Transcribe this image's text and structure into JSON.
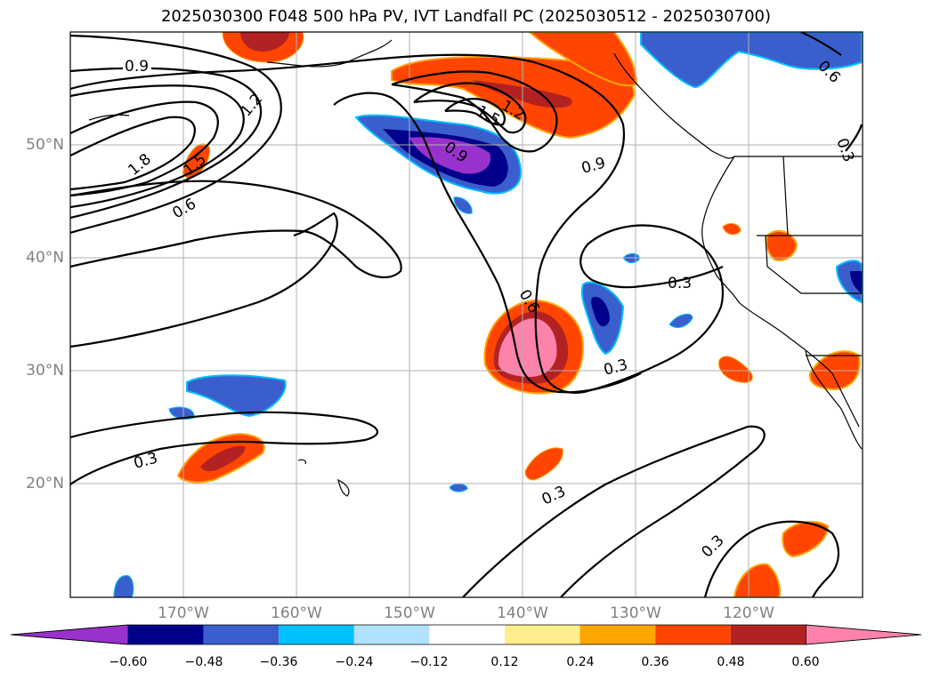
{
  "title": "2025030300 F048 500 hPa PV, IVT Landfall PC (2025030512 - 2025030700)",
  "lat_labels": [
    "50°N",
    "40°N",
    "30°N",
    "20°N"
  ],
  "lon_labels": [
    "170°W",
    "160°W",
    "150°W",
    "140°W",
    "130°W",
    "120°W"
  ],
  "contour_labels": [
    "0.9",
    "1.2",
    "1.5",
    "1.8",
    "1.5",
    "0.6",
    "0.9",
    "1.2",
    "1.5",
    "0.9",
    "0.6",
    "0.9",
    "0.6",
    "0.3",
    "0.3",
    "0.3",
    "0.3",
    "0.3",
    "0.3"
  ],
  "colorbar": {
    "ticks": [
      "−0.60",
      "−0.48",
      "−0.36",
      "−0.24",
      "−0.12",
      "0.12",
      "0.24",
      "0.36",
      "0.48",
      "0.60"
    ],
    "colors": [
      "#9932cc",
      "#00008b",
      "#3a5fcd",
      "#00bfff",
      "#b0e2ff",
      "#ffffff",
      "#ffec8b",
      "#ffa500",
      "#ff4500",
      "#b22222",
      "#ff82ab"
    ]
  }
}
